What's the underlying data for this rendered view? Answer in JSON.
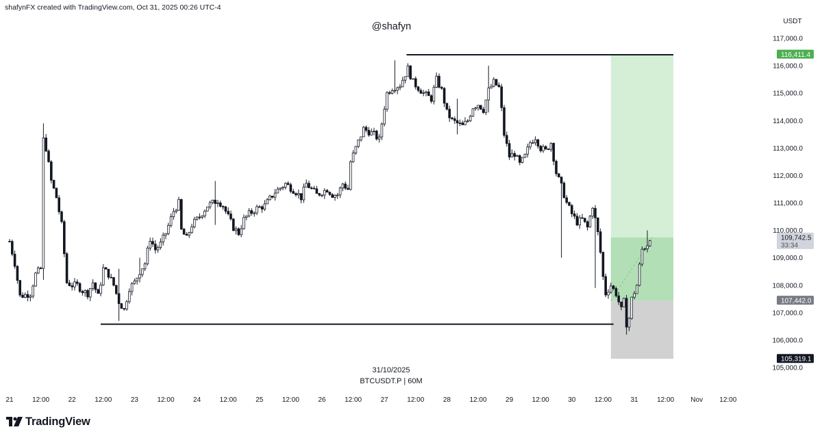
{
  "header": {
    "attribution": "shafynFX created with TradingView.com, Oct 31, 2025 00:26 UTC-4",
    "watermark": "@shafyn"
  },
  "footer": {
    "date": "31/10/2025",
    "symbol": "BTCUSDT.P | 60M",
    "logo_text": "TradingView"
  },
  "chart_data": {
    "type": "candlestick",
    "symbol": "BTCUSDT.P",
    "interval": "60M",
    "currency_label": "USDT",
    "ylim": [
      104600,
      117600
    ],
    "y_ticks": [
      105000,
      106000,
      107000,
      108000,
      109000,
      110000,
      111000,
      112000,
      113000,
      114000,
      115000,
      116000,
      117000
    ],
    "y_tick_labels": [
      "105,000.0",
      "106,000.0",
      "107,000.0",
      "108,000.0",
      "109,000.0",
      "110,000.0",
      "111,000.0",
      "112,000.0",
      "113,000.0",
      "114,000.0",
      "115,000.0",
      "116,000.0",
      "117,000.0"
    ],
    "x_ticks": [
      {
        "label": "21",
        "t": 0
      },
      {
        "label": "12:00",
        "t": 12
      },
      {
        "label": "22",
        "t": 24
      },
      {
        "label": "12:00",
        "t": 36
      },
      {
        "label": "23",
        "t": 48
      },
      {
        "label": "12:00",
        "t": 60
      },
      {
        "label": "24",
        "t": 72
      },
      {
        "label": "12:00",
        "t": 84
      },
      {
        "label": "25",
        "t": 96
      },
      {
        "label": "12:00",
        "t": 108
      },
      {
        "label": "26",
        "t": 120
      },
      {
        "label": "12:00",
        "t": 132
      },
      {
        "label": "27",
        "t": 144
      },
      {
        "label": "12:00",
        "t": 156
      },
      {
        "label": "28",
        "t": 168
      },
      {
        "label": "12:00",
        "t": 180
      },
      {
        "label": "29",
        "t": 192
      },
      {
        "label": "12:00",
        "t": 204
      },
      {
        "label": "30",
        "t": 216
      },
      {
        "label": "12:00",
        "t": 228
      },
      {
        "label": "31",
        "t": 240
      },
      {
        "label": "12:00",
        "t": 252
      },
      {
        "label": "Nov",
        "t": 264
      },
      {
        "label": "12:00",
        "t": 276
      }
    ],
    "price_path": [
      [
        0,
        109600
      ],
      [
        2,
        108800
      ],
      [
        4,
        107600
      ],
      [
        8,
        107700
      ],
      [
        10,
        108400
      ],
      [
        12,
        108600
      ],
      [
        13,
        113300
      ],
      [
        14,
        113000
      ],
      [
        16,
        111800
      ],
      [
        18,
        111200
      ],
      [
        20,
        110200
      ],
      [
        22,
        108100
      ],
      [
        24,
        108000
      ],
      [
        26,
        108000
      ],
      [
        28,
        107800
      ],
      [
        30,
        107700
      ],
      [
        32,
        108100
      ],
      [
        34,
        107600
      ],
      [
        36,
        108600
      ],
      [
        38,
        108400
      ],
      [
        40,
        108000
      ],
      [
        42,
        107400
      ],
      [
        44,
        107100
      ],
      [
        46,
        107900
      ],
      [
        48,
        108100
      ],
      [
        50,
        108500
      ],
      [
        52,
        108800
      ],
      [
        54,
        109700
      ],
      [
        56,
        109300
      ],
      [
        58,
        109500
      ],
      [
        60,
        109900
      ],
      [
        63,
        110700
      ],
      [
        65,
        111000
      ],
      [
        66,
        110000
      ],
      [
        68,
        109700
      ],
      [
        70,
        110200
      ],
      [
        73,
        110500
      ],
      [
        76,
        110900
      ],
      [
        78,
        111000
      ],
      [
        80,
        111100
      ],
      [
        82,
        110900
      ],
      [
        84,
        110500
      ],
      [
        86,
        110100
      ],
      [
        88,
        109900
      ],
      [
        90,
        110400
      ],
      [
        92,
        110600
      ],
      [
        95,
        110800
      ],
      [
        98,
        110900
      ],
      [
        102,
        111400
      ],
      [
        106,
        111700
      ],
      [
        110,
        111400
      ],
      [
        112,
        111200
      ],
      [
        114,
        111700
      ],
      [
        116,
        111500
      ],
      [
        118,
        111300
      ],
      [
        120,
        111400
      ],
      [
        122,
        111500
      ],
      [
        124,
        111300
      ],
      [
        126,
        111300
      ],
      [
        128,
        111700
      ],
      [
        130,
        111500
      ],
      [
        131,
        112500
      ],
      [
        133,
        113000
      ],
      [
        136,
        113700
      ],
      [
        138,
        113600
      ],
      [
        140,
        113500
      ],
      [
        142,
        113300
      ],
      [
        144,
        114500
      ],
      [
        145,
        115000
      ],
      [
        147,
        115200
      ],
      [
        150,
        115300
      ],
      [
        152,
        115700
      ],
      [
        153,
        115900
      ],
      [
        155,
        115400
      ],
      [
        157,
        115200
      ],
      [
        159,
        115000
      ],
      [
        162,
        114800
      ],
      [
        164,
        115500
      ],
      [
        166,
        115100
      ],
      [
        168,
        114300
      ],
      [
        170,
        114000
      ],
      [
        172,
        113900
      ],
      [
        174,
        113800
      ],
      [
        176,
        114000
      ],
      [
        178,
        114500
      ],
      [
        180,
        114600
      ],
      [
        182,
        114400
      ],
      [
        184,
        115100
      ],
      [
        186,
        115400
      ],
      [
        188,
        115200
      ],
      [
        189,
        114400
      ],
      [
        190,
        113500
      ],
      [
        192,
        112700
      ],
      [
        194,
        112800
      ],
      [
        196,
        112400
      ],
      [
        198,
        112700
      ],
      [
        200,
        113200
      ],
      [
        202,
        113400
      ],
      [
        204,
        113000
      ],
      [
        206,
        112900
      ],
      [
        208,
        113200
      ],
      [
        210,
        112100
      ],
      [
        212,
        111600
      ],
      [
        214,
        111000
      ],
      [
        216,
        110600
      ],
      [
        218,
        110300
      ],
      [
        220,
        110400
      ],
      [
        222,
        110100
      ],
      [
        224,
        110900
      ],
      [
        226,
        109900
      ],
      [
        227,
        109200
      ],
      [
        228,
        108300
      ],
      [
        229,
        107700
      ],
      [
        231,
        108000
      ],
      [
        233,
        107700
      ],
      [
        235,
        107100
      ],
      [
        236,
        107400
      ],
      [
        237,
        106600
      ],
      [
        238,
        106800
      ],
      [
        239,
        107500
      ],
      [
        241,
        108000
      ],
      [
        242,
        108700
      ],
      [
        243,
        109300
      ],
      [
        245,
        109500
      ],
      [
        246,
        109750
      ]
    ],
    "spikes": [
      {
        "t": 13,
        "low": 108200,
        "high": 113900
      },
      {
        "t": 42,
        "low": 106700,
        "high": 108600
      },
      {
        "t": 50,
        "low": 108100,
        "high": 109000
      },
      {
        "t": 79,
        "low": 110200,
        "high": 111800
      },
      {
        "t": 148,
        "low": 115000,
        "high": 116200
      },
      {
        "t": 172,
        "low": 113500,
        "high": 114800
      },
      {
        "t": 184,
        "low": 114300,
        "high": 116000
      },
      {
        "t": 212,
        "low": 109000,
        "high": 111300
      },
      {
        "t": 225,
        "low": 107900,
        "high": 110000
      },
      {
        "t": 237,
        "low": 106200,
        "high": 106900
      },
      {
        "t": 245,
        "low": 109200,
        "high": 110000
      }
    ],
    "levels": {
      "top_line": {
        "value": 116400,
        "t_start": 152.5,
        "t_end": 255
      },
      "bottom_line": {
        "value": 106580,
        "t_start": 35,
        "t_end": 232
      }
    },
    "position": {
      "t_start": 231,
      "t_end": 255,
      "take_profit": 116411.4,
      "current": 109742.5,
      "entry": 107442.0,
      "stop": 105319.1
    },
    "price_tags": [
      {
        "value": 116411.4,
        "label": "116,411.4",
        "bg": "#4caf50",
        "fg": "#ffffff"
      },
      {
        "value": 109742.5,
        "label": "109,742.5",
        "sub": "33:34",
        "bg": "#d1d4dc",
        "fg": "#131722"
      },
      {
        "value": 107442.0,
        "label": "107,442.0",
        "bg": "#787b86",
        "fg": "#ffffff"
      },
      {
        "value": 105319.1,
        "label": "105,319.1",
        "bg": "#131722",
        "fg": "#ffffff"
      }
    ],
    "colors": {
      "up_body": "#ffffff",
      "up_border": "#131722",
      "down_body": "#131722",
      "profit_zone": "#d5efd6",
      "active_profit": "#b2dfb5",
      "loss_zone": "#d1d1d1",
      "level_line": "#131722"
    }
  }
}
